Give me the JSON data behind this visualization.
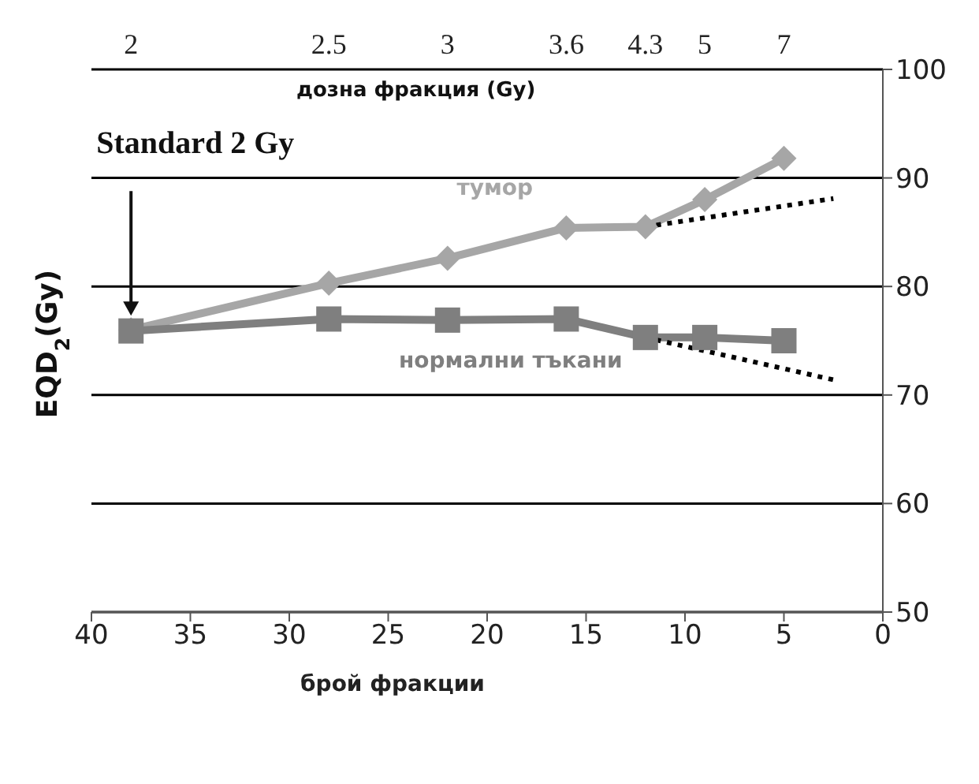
{
  "chart_data": {
    "type": "line",
    "xlabel": "брой фракции",
    "ylabel": "EQD$_{2}$(Gy)",
    "xlim": [
      40,
      0
    ],
    "xticks": [
      40,
      35,
      30,
      25,
      20,
      15,
      10,
      5,
      0
    ],
    "ylim": [
      50,
      100
    ],
    "yticks": [
      50,
      60,
      70,
      80,
      90,
      100
    ],
    "grid": "y",
    "legend": false,
    "series": [
      {
        "name": "тумор",
        "color": "#a6a6a6",
        "marker": "diamond",
        "line_style": "solid",
        "x": [
          38,
          28,
          22,
          16,
          12,
          9,
          5
        ],
        "values": [
          76,
          80.3,
          82.6,
          85.4,
          85.5,
          88,
          91.8
        ]
      },
      {
        "name": "нормални тъкани",
        "color": "#7f7f7f",
        "marker": "square",
        "line_style": "solid",
        "x": [
          38,
          28,
          22,
          16,
          12,
          9,
          5
        ],
        "values": [
          75.9,
          77,
          76.9,
          77,
          75.3,
          75.3,
          75
        ]
      },
      {
        "color": "#000000",
        "marker": "none",
        "line_style": "dotted",
        "x": [
          12,
          2.5
        ],
        "values": [
          85.5,
          88.1
        ]
      },
      {
        "color": "#000000",
        "marker": "none",
        "line_style": "dotted",
        "x": [
          12,
          2.5
        ],
        "values": [
          75.3,
          71.4
        ]
      }
    ],
    "annotations": [
      "Standard 2 Gy",
      "дозна фракция (Gy)",
      "2",
      "2.5",
      "3",
      "3.6",
      "4.3",
      "5",
      "7"
    ]
  }
}
